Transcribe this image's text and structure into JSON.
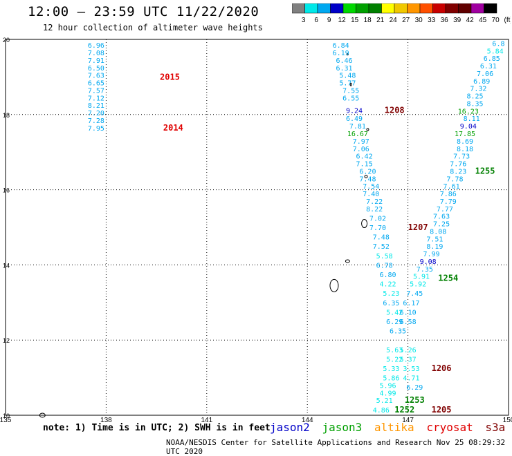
{
  "title": "12:00 – 23:59 UTC 11/22/2020",
  "subtitle": "12 hour collection of altimeter wave heights",
  "colorbar": {
    "ticks": [
      "3",
      "6",
      "9",
      "12",
      "15",
      "18",
      "21",
      "24",
      "27",
      "30",
      "33",
      "36",
      "39",
      "42",
      "45",
      "70",
      "(ft)"
    ],
    "colors": [
      "#808080",
      "#00e8e8",
      "#00a8f0",
      "#0000c8",
      "#00d800",
      "#00a000",
      "#008000",
      "#ffff00",
      "#f0c800",
      "#ff9600",
      "#ff5000",
      "#c80000",
      "#800000",
      "#600000",
      "#a000a0",
      "#000000"
    ]
  },
  "axes": {
    "lon_ticks": [
      "135",
      "138",
      "141",
      "144",
      "147",
      "150"
    ],
    "lat_ticks": [
      "20",
      "18",
      "16",
      "14",
      "12",
      "10"
    ]
  },
  "labels": [
    {
      "text": "6.96",
      "lon": 137.7,
      "lat": 19.85,
      "color": "#00a8f0"
    },
    {
      "text": "7.08",
      "lon": 137.7,
      "lat": 19.65,
      "color": "#00a8f0"
    },
    {
      "text": "7.91",
      "lon": 137.7,
      "lat": 19.45,
      "color": "#00a8f0"
    },
    {
      "text": "6.50",
      "lon": 137.7,
      "lat": 19.25,
      "color": "#00a8f0"
    },
    {
      "text": "7.63",
      "lon": 137.7,
      "lat": 19.05,
      "color": "#00a8f0"
    },
    {
      "text": "6.65",
      "lon": 137.7,
      "lat": 18.85,
      "color": "#00a8f0"
    },
    {
      "text": "7.57",
      "lon": 137.7,
      "lat": 18.65,
      "color": "#00a8f0"
    },
    {
      "text": "7.12",
      "lon": 137.7,
      "lat": 18.45,
      "color": "#00a8f0"
    },
    {
      "text": "8.21",
      "lon": 137.7,
      "lat": 18.25,
      "color": "#00a8f0"
    },
    {
      "text": "7.20",
      "lon": 137.7,
      "lat": 18.05,
      "color": "#00a8f0"
    },
    {
      "text": "7.28",
      "lon": 137.7,
      "lat": 17.85,
      "color": "#00a8f0"
    },
    {
      "text": "7.95",
      "lon": 137.7,
      "lat": 17.65,
      "color": "#00a8f0"
    },
    {
      "text": "2015",
      "lon": 139.9,
      "lat": 19.0,
      "color": "#e00000"
    },
    {
      "text": "2014",
      "lon": 140.0,
      "lat": 17.65,
      "color": "#e00000"
    },
    {
      "text": "6.84",
      "lon": 145.0,
      "lat": 19.85,
      "color": "#00a8f0"
    },
    {
      "text": "6.19",
      "lon": 145.0,
      "lat": 19.65,
      "color": "#00a8f0"
    },
    {
      "text": "6.46",
      "lon": 145.1,
      "lat": 19.45,
      "color": "#00a8f0"
    },
    {
      "text": "6.31",
      "lon": 145.1,
      "lat": 19.25,
      "color": "#00a8f0"
    },
    {
      "text": "5.48",
      "lon": 145.2,
      "lat": 19.05,
      "color": "#00a8f0"
    },
    {
      "text": "5.77",
      "lon": 145.2,
      "lat": 18.85,
      "color": "#00a8f0"
    },
    {
      "text": "7.55",
      "lon": 145.3,
      "lat": 18.65,
      "color": "#00a8f0"
    },
    {
      "text": "6.55",
      "lon": 145.3,
      "lat": 18.45,
      "color": "#00a8f0"
    },
    {
      "text": "9.24",
      "lon": 145.4,
      "lat": 18.12,
      "color": "#0000c8"
    },
    {
      "text": "1208",
      "lon": 146.6,
      "lat": 18.12,
      "color": "#800000"
    },
    {
      "text": "6.49",
      "lon": 145.4,
      "lat": 17.9,
      "color": "#00a8f0"
    },
    {
      "text": "7.81",
      "lon": 145.5,
      "lat": 17.7,
      "color": "#00a8f0"
    },
    {
      "text": "16.67",
      "lon": 145.5,
      "lat": 17.5,
      "color": "#00a000"
    },
    {
      "text": "7.97",
      "lon": 145.6,
      "lat": 17.3,
      "color": "#00a8f0"
    },
    {
      "text": "7.06",
      "lon": 145.6,
      "lat": 17.1,
      "color": "#00a8f0"
    },
    {
      "text": "6.42",
      "lon": 145.7,
      "lat": 16.9,
      "color": "#00a8f0"
    },
    {
      "text": "7.15",
      "lon": 145.7,
      "lat": 16.7,
      "color": "#00a8f0"
    },
    {
      "text": "6.20",
      "lon": 145.8,
      "lat": 16.5,
      "color": "#00a8f0"
    },
    {
      "text": "7.48",
      "lon": 145.8,
      "lat": 16.3,
      "color": "#00a8f0"
    },
    {
      "text": "7.54",
      "lon": 145.9,
      "lat": 16.1,
      "color": "#00a8f0"
    },
    {
      "text": "7.40",
      "lon": 145.9,
      "lat": 15.9,
      "color": "#00a8f0"
    },
    {
      "text": "7.22",
      "lon": 146.0,
      "lat": 15.7,
      "color": "#00a8f0"
    },
    {
      "text": "8.22",
      "lon": 146.0,
      "lat": 15.5,
      "color": "#00a8f0"
    },
    {
      "text": "7.02",
      "lon": 146.1,
      "lat": 15.25,
      "color": "#00a8f0"
    },
    {
      "text": "7.70",
      "lon": 146.1,
      "lat": 15.0,
      "color": "#00a8f0"
    },
    {
      "text": "1207",
      "lon": 147.3,
      "lat": 15.0,
      "color": "#800000"
    },
    {
      "text": "7.48",
      "lon": 146.2,
      "lat": 14.75,
      "color": "#00a8f0"
    },
    {
      "text": "7.52",
      "lon": 146.2,
      "lat": 14.5,
      "color": "#00a8f0"
    },
    {
      "text": "5.58",
      "lon": 146.3,
      "lat": 14.25,
      "color": "#00e8e8"
    },
    {
      "text": "6.78",
      "lon": 146.3,
      "lat": 14.0,
      "color": "#00a8f0"
    },
    {
      "text": "6.80",
      "lon": 146.4,
      "lat": 13.75,
      "color": "#00a8f0"
    },
    {
      "text": "4.22",
      "lon": 146.4,
      "lat": 13.5,
      "color": "#00e8e8"
    },
    {
      "text": "5.23",
      "lon": 146.5,
      "lat": 13.25,
      "color": "#00e8e8"
    },
    {
      "text": "6.35",
      "lon": 146.5,
      "lat": 13.0,
      "color": "#00a8f0"
    },
    {
      "text": "5.42",
      "lon": 146.6,
      "lat": 12.75,
      "color": "#00e8e8"
    },
    {
      "text": "6.29",
      "lon": 146.6,
      "lat": 12.5,
      "color": "#00a8f0"
    },
    {
      "text": "6.35",
      "lon": 146.7,
      "lat": 12.25,
      "color": "#00a8f0"
    },
    {
      "text": "5.63",
      "lon": 146.6,
      "lat": 11.75,
      "color": "#00e8e8"
    },
    {
      "text": "5.22",
      "lon": 146.6,
      "lat": 11.5,
      "color": "#00e8e8"
    },
    {
      "text": "5.33",
      "lon": 146.5,
      "lat": 11.25,
      "color": "#00e8e8"
    },
    {
      "text": "5.86",
      "lon": 146.5,
      "lat": 11.0,
      "color": "#00e8e8"
    },
    {
      "text": "5.96",
      "lon": 146.4,
      "lat": 10.8,
      "color": "#00e8e8"
    },
    {
      "text": "4.99",
      "lon": 146.4,
      "lat": 10.6,
      "color": "#00e8e8"
    },
    {
      "text": "5.21",
      "lon": 146.3,
      "lat": 10.4,
      "color": "#00e8e8"
    },
    {
      "text": "4.86",
      "lon": 146.2,
      "lat": 10.15,
      "color": "#00e8e8"
    },
    {
      "text": "1253",
      "lon": 147.2,
      "lat": 10.4,
      "color": "#008000"
    },
    {
      "text": "1252",
      "lon": 146.9,
      "lat": 10.15,
      "color": "#008000"
    },
    {
      "text": "1205",
      "lon": 148.0,
      "lat": 10.15,
      "color": "#800000"
    },
    {
      "text": "1206",
      "lon": 148.0,
      "lat": 11.25,
      "color": "#800000"
    },
    {
      "text": "3.53",
      "lon": 147.1,
      "lat": 11.25,
      "color": "#00e8e8"
    },
    {
      "text": "4.71",
      "lon": 147.1,
      "lat": 11.0,
      "color": "#00e8e8"
    },
    {
      "text": "6.29",
      "lon": 147.2,
      "lat": 10.75,
      "color": "#00a8f0"
    },
    {
      "text": "5.37",
      "lon": 147.0,
      "lat": 11.5,
      "color": "#00e8e8"
    },
    {
      "text": "5.26",
      "lon": 147.0,
      "lat": 11.75,
      "color": "#00e8e8"
    },
    {
      "text": "6.58",
      "lon": 147.0,
      "lat": 12.5,
      "color": "#00a8f0"
    },
    {
      "text": "6.10",
      "lon": 147.0,
      "lat": 12.75,
      "color": "#00a8f0"
    },
    {
      "text": "6.17",
      "lon": 147.1,
      "lat": 13.0,
      "color": "#00a8f0"
    },
    {
      "text": "7.45",
      "lon": 147.2,
      "lat": 13.25,
      "color": "#00a8f0"
    },
    {
      "text": "5.92",
      "lon": 147.3,
      "lat": 13.5,
      "color": "#00e8e8"
    },
    {
      "text": "5.91",
      "lon": 147.4,
      "lat": 13.7,
      "color": "#00e8e8"
    },
    {
      "text": "1254",
      "lon": 148.2,
      "lat": 13.65,
      "color": "#008000"
    },
    {
      "text": "7.35",
      "lon": 147.5,
      "lat": 13.9,
      "color": "#00a8f0"
    },
    {
      "text": "9.08",
      "lon": 147.6,
      "lat": 14.1,
      "color": "#0000c8"
    },
    {
      "text": "7.99",
      "lon": 147.7,
      "lat": 14.3,
      "color": "#00a8f0"
    },
    {
      "text": "8.19",
      "lon": 147.8,
      "lat": 14.5,
      "color": "#00a8f0"
    },
    {
      "text": "7.51",
      "lon": 147.8,
      "lat": 14.7,
      "color": "#00a8f0"
    },
    {
      "text": "8.08",
      "lon": 147.9,
      "lat": 14.9,
      "color": "#00a8f0"
    },
    {
      "text": "7.25",
      "lon": 148.0,
      "lat": 15.1,
      "color": "#00a8f0"
    },
    {
      "text": "7.63",
      "lon": 148.0,
      "lat": 15.3,
      "color": "#00a8f0"
    },
    {
      "text": "7.77",
      "lon": 148.1,
      "lat": 15.5,
      "color": "#00a8f0"
    },
    {
      "text": "7.79",
      "lon": 148.2,
      "lat": 15.7,
      "color": "#00a8f0"
    },
    {
      "text": "7.86",
      "lon": 148.2,
      "lat": 15.9,
      "color": "#00a8f0"
    },
    {
      "text": "7.61",
      "lon": 148.3,
      "lat": 16.1,
      "color": "#00a8f0"
    },
    {
      "text": "7.78",
      "lon": 148.4,
      "lat": 16.3,
      "color": "#00a8f0"
    },
    {
      "text": "8.23",
      "lon": 148.5,
      "lat": 16.5,
      "color": "#00a8f0"
    },
    {
      "text": "1255",
      "lon": 149.3,
      "lat": 16.5,
      "color": "#008000"
    },
    {
      "text": "7.76",
      "lon": 148.5,
      "lat": 16.7,
      "color": "#00a8f0"
    },
    {
      "text": "7.73",
      "lon": 148.6,
      "lat": 16.9,
      "color": "#00a8f0"
    },
    {
      "text": "8.18",
      "lon": 148.7,
      "lat": 17.1,
      "color": "#00a8f0"
    },
    {
      "text": "8.69",
      "lon": 148.7,
      "lat": 17.3,
      "color": "#00a8f0"
    },
    {
      "text": "17.85",
      "lon": 148.7,
      "lat": 17.5,
      "color": "#00a000"
    },
    {
      "text": "9.04",
      "lon": 148.8,
      "lat": 17.7,
      "color": "#0000c8"
    },
    {
      "text": "8.11",
      "lon": 148.9,
      "lat": 17.9,
      "color": "#00a8f0"
    },
    {
      "text": "16.23",
      "lon": 148.8,
      "lat": 18.1,
      "color": "#00a000"
    },
    {
      "text": "8.35",
      "lon": 149.0,
      "lat": 18.3,
      "color": "#00a8f0"
    },
    {
      "text": "8.25",
      "lon": 149.0,
      "lat": 18.5,
      "color": "#00a8f0"
    },
    {
      "text": "7.32",
      "lon": 149.1,
      "lat": 18.7,
      "color": "#00a8f0"
    },
    {
      "text": "6.89",
      "lon": 149.2,
      "lat": 18.9,
      "color": "#00a8f0"
    },
    {
      "text": "7.06",
      "lon": 149.3,
      "lat": 19.1,
      "color": "#00a8f0"
    },
    {
      "text": "6.31",
      "lon": 149.4,
      "lat": 19.3,
      "color": "#00a8f0"
    },
    {
      "text": "6.85",
      "lon": 149.5,
      "lat": 19.5,
      "color": "#00a8f0"
    },
    {
      "text": "5.84",
      "lon": 149.6,
      "lat": 19.7,
      "color": "#00e8e8"
    },
    {
      "text": "6.8",
      "lon": 149.7,
      "lat": 19.9,
      "color": "#00a8f0"
    }
  ],
  "footer": {
    "note": "note: 1) Time is in UTC; 2) SWH is in feet",
    "satellites": [
      {
        "name": "jason2",
        "color": "#0000c8"
      },
      {
        "name": "jason3",
        "color": "#00a000"
      },
      {
        "name": "altika",
        "color": "#ff9600"
      },
      {
        "name": "cryosat",
        "color": "#e00000"
      },
      {
        "name": "s3a",
        "color": "#800000"
      }
    ],
    "credit": "NOAA/NESDIS Center for Satellite Applications and Research   Nov 25 08:29:32 UTC 2020"
  }
}
